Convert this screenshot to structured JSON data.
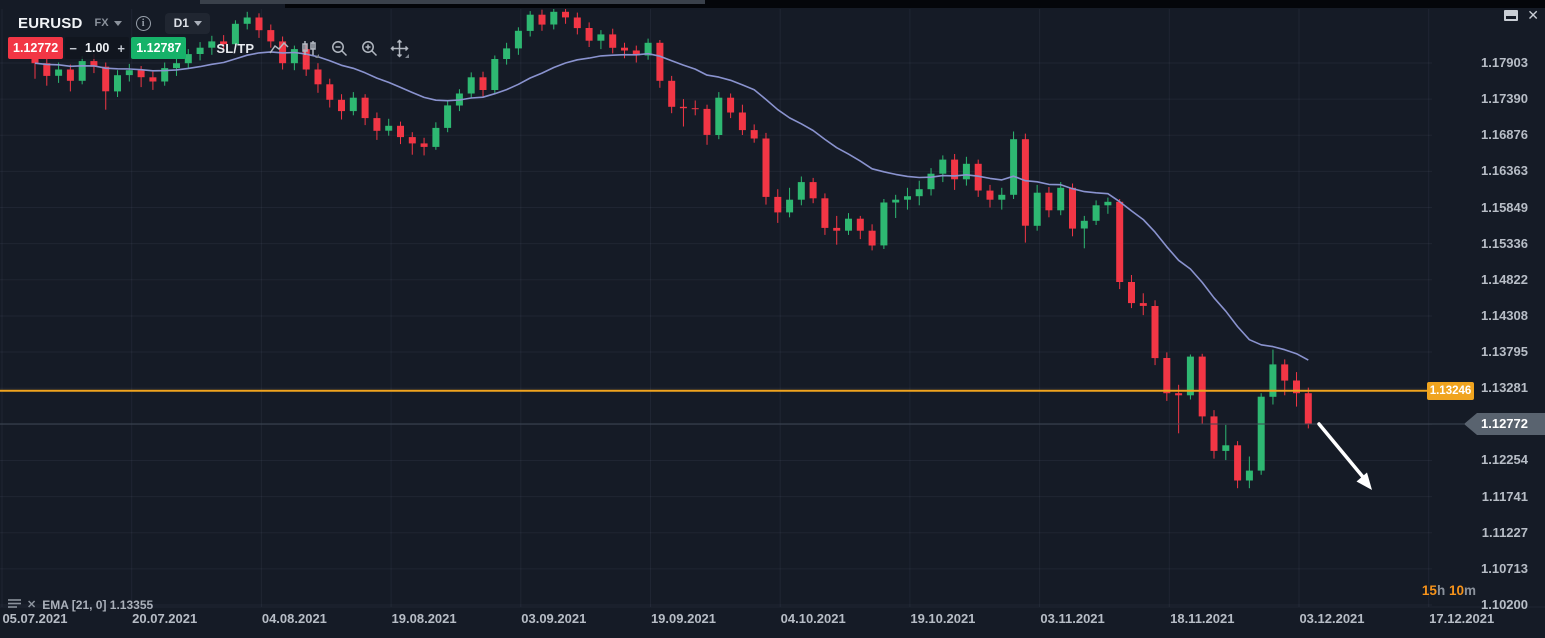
{
  "window": {
    "close_glyph": "✕"
  },
  "toolbar": {
    "symbol": "EURUSD",
    "market": "FX",
    "timeframe": "D1",
    "sell_price": "1.12772",
    "buy_price": "1.12787",
    "amount": "1.00",
    "minus": "−",
    "plus": "+",
    "sltp_label": "SL/TP"
  },
  "legend": {
    "text": "EMA [21, 0] 1.13355",
    "close_glyph": "✕"
  },
  "countdown": {
    "hours_value": "15",
    "hours_unit": "h",
    "minutes_value": "10",
    "minutes_unit": "m"
  },
  "price_axis": {
    "labels": [
      {
        "text": "1.17903",
        "value": 1.17903
      },
      {
        "text": "1.17390",
        "value": 1.1739
      },
      {
        "text": "1.16876",
        "value": 1.16876
      },
      {
        "text": "1.16363",
        "value": 1.16363
      },
      {
        "text": "1.15849",
        "value": 1.15849
      },
      {
        "text": "1.15336",
        "value": 1.15336
      },
      {
        "text": "1.14822",
        "value": 1.14822
      },
      {
        "text": "1.14308",
        "value": 1.14308
      },
      {
        "text": "1.13795",
        "value": 1.13795
      },
      {
        "text": "1.13281",
        "value": 1.13281
      },
      {
        "text": "1.12254",
        "value": 1.12254
      },
      {
        "text": "1.11741",
        "value": 1.11741
      },
      {
        "text": "1.11227",
        "value": 1.11227
      },
      {
        "text": "1.10713",
        "value": 1.10713
      },
      {
        "text": "1.10200",
        "value": 1.102
      }
    ],
    "hidden_row_value": 1.12768
  },
  "time_axis": {
    "labels": [
      "05.07.2021",
      "20.07.2021",
      "04.08.2021",
      "19.08.2021",
      "03.09.2021",
      "19.09.2021",
      "04.10.2021",
      "19.10.2021",
      "03.11.2021",
      "18.11.2021",
      "03.12.2021",
      "17.12.2021"
    ]
  },
  "chart_data": {
    "type": "candlestick",
    "symbol": "EURUSD",
    "timeframe": "D1",
    "price_top": 1.17903,
    "price_bottom": 1.102,
    "current_price": 1.12772,
    "current_price_text": "1.12772",
    "alert_line": 1.13246,
    "alert_line_text": "1.13246",
    "ema": {
      "period": 21,
      "offset": 0,
      "last_value": 1.13355
    },
    "arrow_annotation": {
      "direction": "down-right",
      "color": "#ffffff"
    },
    "candles": [
      [
        1.18,
        1.1812,
        1.1768,
        1.179
      ],
      [
        1.179,
        1.1798,
        1.1758,
        1.1772
      ],
      [
        1.1772,
        1.1791,
        1.1762,
        1.1781
      ],
      [
        1.1781,
        1.1788,
        1.175,
        1.1765
      ],
      [
        1.1765,
        1.18,
        1.176,
        1.1793
      ],
      [
        1.1793,
        1.1803,
        1.1776,
        1.1785
      ],
      [
        1.1785,
        1.1791,
        1.1724,
        1.175
      ],
      [
        1.175,
        1.178,
        1.1742,
        1.1773
      ],
      [
        1.1773,
        1.1789,
        1.1764,
        1.178
      ],
      [
        1.178,
        1.1786,
        1.1756,
        1.177
      ],
      [
        1.177,
        1.1778,
        1.1752,
        1.1764
      ],
      [
        1.1764,
        1.1791,
        1.1758,
        1.1783
      ],
      [
        1.1783,
        1.1798,
        1.1772,
        1.179
      ],
      [
        1.179,
        1.181,
        1.1782,
        1.1803
      ],
      [
        1.1803,
        1.182,
        1.1794,
        1.1812
      ],
      [
        1.1812,
        1.1829,
        1.1802,
        1.1821
      ],
      [
        1.1821,
        1.183,
        1.1806,
        1.1817
      ],
      [
        1.1817,
        1.1851,
        1.1811,
        1.1846
      ],
      [
        1.1846,
        1.1863,
        1.1838,
        1.1855
      ],
      [
        1.1855,
        1.1861,
        1.1826,
        1.1837
      ],
      [
        1.1837,
        1.1845,
        1.1812,
        1.1821
      ],
      [
        1.1821,
        1.1828,
        1.1781,
        1.179
      ],
      [
        1.179,
        1.1815,
        1.178,
        1.181
      ],
      [
        1.181,
        1.1817,
        1.1772,
        1.1781
      ],
      [
        1.1781,
        1.179,
        1.1748,
        1.176
      ],
      [
        1.176,
        1.1768,
        1.1727,
        1.1738
      ],
      [
        1.1738,
        1.1746,
        1.171,
        1.1722
      ],
      [
        1.1722,
        1.1749,
        1.1716,
        1.1741
      ],
      [
        1.1741,
        1.1746,
        1.1702,
        1.1712
      ],
      [
        1.1712,
        1.172,
        1.1681,
        1.1694
      ],
      [
        1.1694,
        1.1711,
        1.1687,
        1.1701
      ],
      [
        1.1701,
        1.1707,
        1.1675,
        1.1685
      ],
      [
        1.1685,
        1.1692,
        1.166,
        1.1676
      ],
      [
        1.1676,
        1.1684,
        1.1659,
        1.1671
      ],
      [
        1.1671,
        1.1706,
        1.1667,
        1.1698
      ],
      [
        1.1698,
        1.1737,
        1.1692,
        1.173
      ],
      [
        1.173,
        1.1753,
        1.1722,
        1.1747
      ],
      [
        1.1747,
        1.1777,
        1.174,
        1.177
      ],
      [
        1.177,
        1.1778,
        1.1741,
        1.1752
      ],
      [
        1.1752,
        1.1801,
        1.1747,
        1.1796
      ],
      [
        1.1796,
        1.1819,
        1.1788,
        1.1811
      ],
      [
        1.1811,
        1.1841,
        1.1802,
        1.1836
      ],
      [
        1.1836,
        1.1864,
        1.1828,
        1.1859
      ],
      [
        1.1859,
        1.1866,
        1.1836,
        1.1845
      ],
      [
        1.1845,
        1.1868,
        1.1838,
        1.1863
      ],
      [
        1.1863,
        1.1867,
        1.1846,
        1.1855
      ],
      [
        1.1855,
        1.1862,
        1.1831,
        1.184
      ],
      [
        1.184,
        1.1848,
        1.1813,
        1.1822
      ],
      [
        1.1822,
        1.1837,
        1.181,
        1.1831
      ],
      [
        1.1831,
        1.1839,
        1.1804,
        1.1812
      ],
      [
        1.1812,
        1.1819,
        1.1797,
        1.1808
      ],
      [
        1.1808,
        1.1815,
        1.1791,
        1.1801
      ],
      [
        1.1801,
        1.1825,
        1.1795,
        1.1819
      ],
      [
        1.1819,
        1.1823,
        1.1755,
        1.1765
      ],
      [
        1.1765,
        1.1772,
        1.1719,
        1.1728
      ],
      [
        1.1728,
        1.1739,
        1.17,
        1.1726
      ],
      [
        1.1726,
        1.1737,
        1.1716,
        1.1725
      ],
      [
        1.1725,
        1.1731,
        1.1674,
        1.1688
      ],
      [
        1.1688,
        1.1749,
        1.1682,
        1.1741
      ],
      [
        1.1741,
        1.1747,
        1.1712,
        1.172
      ],
      [
        1.172,
        1.1731,
        1.1688,
        1.1695
      ],
      [
        1.1695,
        1.1703,
        1.1677,
        1.1683
      ],
      [
        1.1683,
        1.1691,
        1.1589,
        1.16
      ],
      [
        1.16,
        1.1611,
        1.1563,
        1.1578
      ],
      [
        1.1578,
        1.1613,
        1.1571,
        1.1596
      ],
      [
        1.1596,
        1.1629,
        1.1588,
        1.1621
      ],
      [
        1.1621,
        1.1627,
        1.1591,
        1.1598
      ],
      [
        1.1598,
        1.1605,
        1.1546,
        1.1556
      ],
      [
        1.1556,
        1.1573,
        1.1532,
        1.1552
      ],
      [
        1.1552,
        1.1577,
        1.1546,
        1.1569
      ],
      [
        1.1569,
        1.1573,
        1.154,
        1.1552
      ],
      [
        1.1552,
        1.1561,
        1.1524,
        1.1531
      ],
      [
        1.1531,
        1.1597,
        1.1526,
        1.1592
      ],
      [
        1.1592,
        1.1603,
        1.157,
        1.1596
      ],
      [
        1.1596,
        1.1613,
        1.1582,
        1.1601
      ],
      [
        1.1601,
        1.1623,
        1.1588,
        1.1611
      ],
      [
        1.1611,
        1.1641,
        1.1602,
        1.1633
      ],
      [
        1.1633,
        1.1659,
        1.1621,
        1.1653
      ],
      [
        1.1653,
        1.1661,
        1.161,
        1.1625
      ],
      [
        1.1625,
        1.1657,
        1.1616,
        1.1647
      ],
      [
        1.1647,
        1.1653,
        1.16,
        1.1609
      ],
      [
        1.1609,
        1.1617,
        1.1585,
        1.1596
      ],
      [
        1.1596,
        1.1613,
        1.1582,
        1.1603
      ],
      [
        1.1603,
        1.1693,
        1.1597,
        1.1682
      ],
      [
        1.1682,
        1.169,
        1.1535,
        1.1559
      ],
      [
        1.1559,
        1.1617,
        1.1552,
        1.1606
      ],
      [
        1.1606,
        1.1614,
        1.1571,
        1.1581
      ],
      [
        1.1581,
        1.1621,
        1.1574,
        1.1613
      ],
      [
        1.1613,
        1.1619,
        1.1544,
        1.1555
      ],
      [
        1.1555,
        1.1573,
        1.1527,
        1.1566
      ],
      [
        1.1566,
        1.1595,
        1.156,
        1.1588
      ],
      [
        1.1588,
        1.1599,
        1.1576,
        1.1593
      ],
      [
        1.1593,
        1.1597,
        1.1469,
        1.1479
      ],
      [
        1.1479,
        1.1489,
        1.1442,
        1.1449
      ],
      [
        1.1449,
        1.1463,
        1.1432,
        1.1445
      ],
      [
        1.1445,
        1.1453,
        1.1361,
        1.1371
      ],
      [
        1.1371,
        1.1379,
        1.131,
        1.1321
      ],
      [
        1.1321,
        1.1333,
        1.1264,
        1.1318
      ],
      [
        1.1318,
        1.1376,
        1.1312,
        1.1373
      ],
      [
        1.1373,
        1.1377,
        1.1277,
        1.1288
      ],
      [
        1.1288,
        1.1297,
        1.1228,
        1.1239
      ],
      [
        1.1239,
        1.1276,
        1.1226,
        1.1247
      ],
      [
        1.1247,
        1.1253,
        1.1186,
        1.1197
      ],
      [
        1.1197,
        1.1231,
        1.1186,
        1.1211
      ],
      [
        1.1211,
        1.1321,
        1.1205,
        1.1316
      ],
      [
        1.1316,
        1.1383,
        1.1305,
        1.1362
      ],
      [
        1.1362,
        1.1369,
        1.1318,
        1.1339
      ],
      [
        1.1339,
        1.1351,
        1.1302,
        1.1321
      ],
      [
        1.1321,
        1.1329,
        1.1271,
        1.12772
      ]
    ]
  },
  "colors": {
    "background": "#151b26",
    "grid": "rgba(150,165,190,0.08)",
    "candle_up": "#2eb872",
    "candle_down": "#f23645",
    "ema_line": "#8a93cf",
    "alert_yellow": "#f0a41f",
    "current_line": "#3d4754",
    "price_tag_bg": "#59636f",
    "axis_text": "#b7bdc6",
    "countdown_orange": "#f7931a",
    "sell_red": "#f23645",
    "buy_green": "#16b269",
    "arrow_white": "#ffffff"
  }
}
